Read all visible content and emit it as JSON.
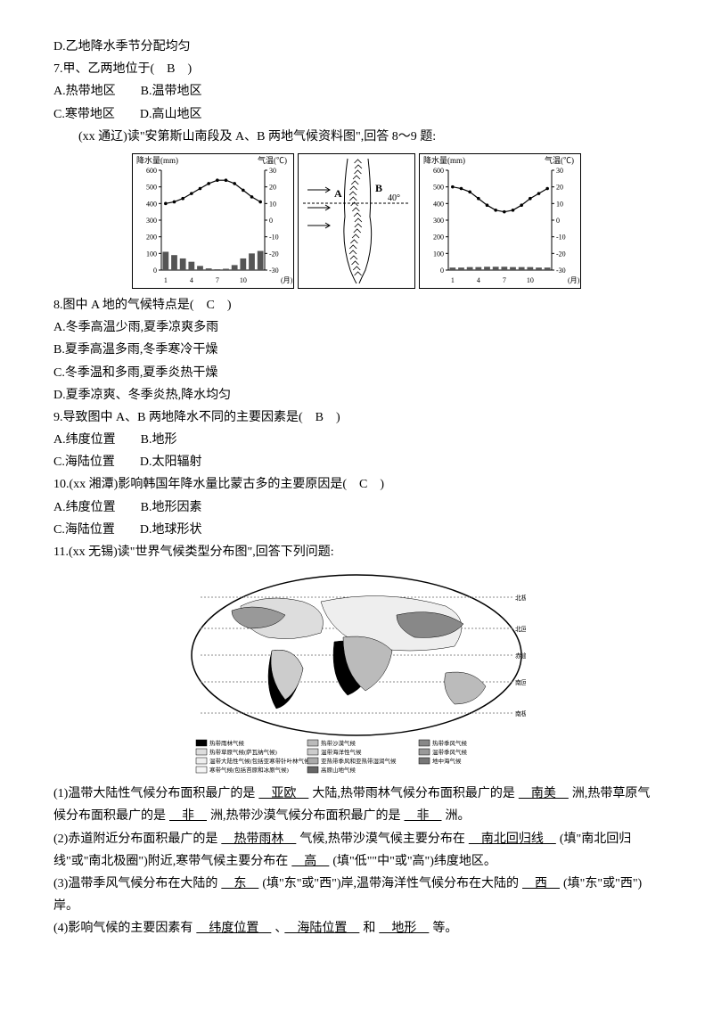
{
  "lines": {
    "d_option": "D.乙地降水季节分配均匀",
    "q7": "7.甲、乙两地位于(　B　)",
    "q7a": "A.热带地区　　B.温带地区",
    "q7b": "C.寒带地区　　D.高山地区",
    "intro89": "　　(xx 通辽)读\"安第斯山南段及 A、B 两地气候资料图\",回答 8～9 题:",
    "q8": "8.图中 A 地的气候特点是(　C　)",
    "q8a": "A.冬季高温少雨,夏季凉爽多雨",
    "q8b": "B.夏季高温多雨,冬季寒冷干燥",
    "q8c": "C.冬季温和多雨,夏季炎热干燥",
    "q8d": "D.夏季凉爽、冬季炎热,降水均匀",
    "q9": "9.导致图中 A、B 两地降水不同的主要因素是(　B　)",
    "q9a": "A.纬度位置　　B.地形",
    "q9b": "C.海陆位置　　D.太阳辐射",
    "q10": "10.(xx 湘潭)影响韩国年降水量比蒙古多的主要原因是(　C　)",
    "q10a": "A.纬度位置　　B.地形因素",
    "q10b": "C.海陆位置　　D.地球形状",
    "q11": "11.(xx 无锡)读\"世界气候类型分布图\",回答下列问题:"
  },
  "fill": {
    "p1_a": "(1)温带大陆性气候分布面积最广的是",
    "p1_u1": "　亚欧　",
    "p1_b": "大陆,热带雨林气候分布面积最广的是",
    "p1_u2": "　南美　",
    "p1_c": "洲,热带草原气候分布面积最广的是",
    "p1_u3": "　非　",
    "p1_d": "洲,热带沙漠气候分布面积最广的是",
    "p1_u4": "　非　",
    "p1_e": "洲。",
    "p2_a": "(2)赤道附近分布面积最广的是",
    "p2_u1": "　热带雨林　",
    "p2_b": "气候,热带沙漠气候主要分布在",
    "p2_u2": "　南北回归线　",
    "p2_c": "(填\"南北回归线\"或\"南北极圈\")附近,寒带气候主要分布在",
    "p2_u3": "　高　",
    "p2_d": "(填\"低\"\"中\"或\"高\")纬度地区。",
    "p3_a": "(3)温带季风气候分布在大陆的",
    "p3_u1": "　东　",
    "p3_b": "(填\"东\"或\"西\")岸,温带海洋性气候分布在大陆的",
    "p3_u2": "　西　",
    "p3_c": "(填\"东\"或\"西\")岸。",
    "p4_a": "(4)影响气候的主要因素有",
    "p4_u1": "　纬度位置　",
    "p4_b": "、",
    "p4_u2": "　海陆位置　",
    "p4_c": "和",
    "p4_u3": "　地形　",
    "p4_d": "等。"
  },
  "chartA": {
    "title_precip": "降水量(mm)",
    "title_temp": "气温(℃)",
    "y_precip_ticks": [
      0,
      100,
      200,
      300,
      400,
      500,
      600
    ],
    "y_temp_ticks": [
      -30,
      -20,
      -10,
      0,
      10,
      20,
      30
    ],
    "x_ticks": [
      1,
      4,
      7,
      10
    ],
    "x_label": "(月)",
    "temp_values": [
      10,
      11,
      13,
      16,
      19,
      22,
      24,
      24,
      22,
      18,
      14,
      11
    ],
    "precip_values": [
      110,
      90,
      70,
      50,
      25,
      10,
      5,
      8,
      30,
      70,
      100,
      115
    ],
    "line_color": "#000000",
    "bar_color": "#555555",
    "bg": "#ffffff"
  },
  "chartB": {
    "title_precip": "降水量(mm)",
    "title_temp": "气温(℃)",
    "y_precip_ticks": [
      0,
      100,
      200,
      300,
      400,
      500,
      600
    ],
    "y_temp_ticks": [
      -30,
      -20,
      -10,
      0,
      10,
      20,
      30
    ],
    "x_ticks": [
      1,
      4,
      7,
      10
    ],
    "x_label": "(月)",
    "temp_values": [
      20,
      19,
      17,
      13,
      9,
      6,
      5,
      6,
      9,
      13,
      16,
      19
    ],
    "precip_values": [
      15,
      15,
      18,
      18,
      20,
      20,
      20,
      18,
      18,
      18,
      15,
      15
    ],
    "line_color": "#000000",
    "bar_color": "#555555",
    "bg": "#ffffff"
  },
  "andes_map": {
    "label_A": "A",
    "label_B": "B",
    "lat_label": "40°",
    "mountain_color": "#000000"
  },
  "world_legend": [
    {
      "label": "热带雨林气候",
      "fill": "#000000"
    },
    {
      "label": "热带沙漠气候",
      "fill": "#bbbbbb"
    },
    {
      "label": "热带季风气候",
      "fill": "#888888"
    },
    {
      "label": "热带草原气候(萨瓦纳气候)",
      "fill": "#dddddd"
    },
    {
      "label": "温带海洋性气候",
      "fill": "#cccccc"
    },
    {
      "label": "温带季风气候",
      "fill": "#999999"
    },
    {
      "label": "温带大陆性气候(包括亚寒带针叶林气候)",
      "fill": "#eeeeee"
    },
    {
      "label": "亚热带季风和亚热带湿润气候",
      "fill": "#aaaaaa"
    },
    {
      "label": "地中海气候",
      "fill": "#777777"
    },
    {
      "label": "寒带气候(包括苔原和冰原气候)",
      "fill": "#f5f5f5"
    },
    {
      "label": "高原山地气候",
      "fill": "#666666"
    }
  ],
  "world_labels": {
    "north": "北极圈",
    "tropic_n": "北回归线",
    "equator": "赤道",
    "tropic_s": "南回归线",
    "south": "南极圈"
  }
}
